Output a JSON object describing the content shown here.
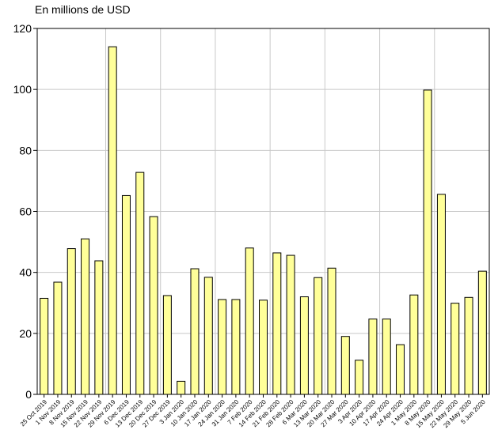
{
  "chart_data": {
    "type": "bar",
    "ylabel": "En millions de USD",
    "ylim": [
      0,
      120
    ],
    "yticks": [
      0,
      20,
      40,
      60,
      80,
      100,
      120
    ],
    "grid": true,
    "bar_color": "#ffff99",
    "bar_edge_color": "#000000",
    "categories": [
      "25 Oct 2019",
      "1 Nov 2019",
      "8 Nov 2019",
      "15 Nov 2019",
      "22 Nov 2019",
      "29 Nov 2019",
      "6 Dec 2019",
      "13 Dec 2019",
      "20 Dec 2019",
      "27 Dec 2019",
      "3 Jan 2020",
      "10 Jan 2020",
      "17 Jan 2020",
      "24 Jan 2020",
      "31 Jan 2020",
      "7 Feb 2020",
      "14 Feb 2020",
      "21 Feb 2020",
      "28 Feb 2020",
      "6 Mar 2020",
      "13 Mar 2020",
      "20 Mar 2020",
      "27 Mar 2020",
      "3 Apr 2020",
      "10 Apr 2020",
      "17 Apr 2020",
      "24 Apr 2020",
      "1 May 2020",
      "8 May 2020",
      "15 May 2020",
      "22 May 2020",
      "29 May 2020",
      "5 Jun 2020"
    ],
    "values": [
      31.5,
      36.8,
      47.8,
      51.0,
      43.8,
      114.0,
      65.2,
      72.8,
      58.3,
      32.4,
      4.3,
      41.2,
      38.4,
      31.1,
      31.1,
      48.0,
      30.9,
      46.4,
      45.6,
      32.0,
      38.3,
      41.4,
      19.0,
      11.2,
      24.7,
      24.7,
      16.3,
      32.6,
      99.8,
      65.6,
      29.9,
      31.8,
      40.4
    ]
  }
}
